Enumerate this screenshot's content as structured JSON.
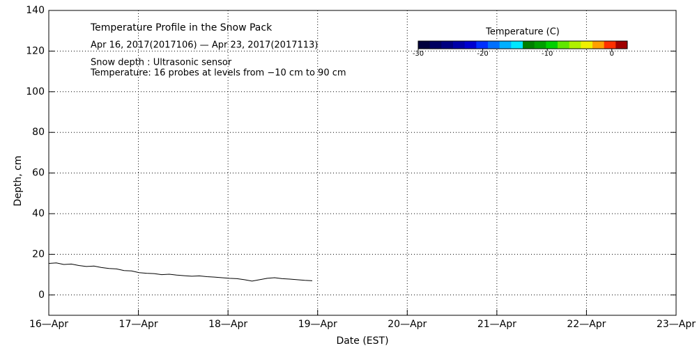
{
  "chart_data": {
    "type": "line",
    "title": "Temperature Profile in the Snow Pack",
    "subtitle": "Apr 16, 2017(2017106) — Apr 23, 2017(2017113)",
    "annotations": [
      "Snow depth : Ultrasonic sensor",
      "Temperature: 16 probes at levels from −10 cm to 90 cm"
    ],
    "x_label": "Date (EST)",
    "y_label": "Depth, cm",
    "xlim": [
      0,
      7
    ],
    "xticks": [
      {
        "value": 0,
        "label": "16—Apr"
      },
      {
        "value": 1,
        "label": "17—Apr"
      },
      {
        "value": 2,
        "label": "18—Apr"
      },
      {
        "value": 3,
        "label": "19—Apr"
      },
      {
        "value": 4,
        "label": "20—Apr"
      },
      {
        "value": 5,
        "label": "21—Apr"
      },
      {
        "value": 6,
        "label": "22—Apr"
      },
      {
        "value": 7,
        "label": "23—Apr"
      }
    ],
    "ylim": [
      -10,
      140
    ],
    "yticks": [
      0,
      20,
      40,
      60,
      80,
      100,
      120,
      140
    ],
    "grid": true,
    "series": [
      {
        "name": "Snow depth",
        "color": "#000000",
        "x": [
          0,
          0.084,
          0.168,
          0.252,
          0.336,
          0.42,
          0.504,
          0.588,
          0.672,
          0.756,
          0.84,
          0.924,
          1.008,
          1.092,
          1.176,
          1.26,
          1.344,
          1.428,
          1.512,
          1.596,
          1.68,
          1.764,
          1.848,
          1.932,
          2.016,
          2.1,
          2.184,
          2.268,
          2.352,
          2.436,
          2.52,
          2.604,
          2.688,
          2.772,
          2.856,
          2.94
        ],
        "values": [
          15.5,
          15.8,
          15,
          15.2,
          14.5,
          14,
          14.2,
          13.5,
          13,
          12.8,
          12,
          11.8,
          11,
          10.7,
          10.5,
          10,
          10.2,
          9.8,
          9.5,
          9.2,
          9.4,
          9,
          8.8,
          8.5,
          8.2,
          8,
          7.5,
          6.8,
          7.5,
          8.2,
          8.5,
          8,
          7.8,
          7.5,
          7.2,
          7
        ]
      }
    ],
    "colorbar": {
      "title": "Temperature (C)",
      "lim": [
        -30,
        2.4
      ],
      "ticks": [
        -30,
        -20,
        -10,
        0
      ],
      "colors": [
        "#00003c",
        "#000060",
        "#000080",
        "#0000a8",
        "#0000d0",
        "#0030ff",
        "#0070ff",
        "#00b0ff",
        "#00e8ff",
        "#008000",
        "#00a000",
        "#00d000",
        "#60e800",
        "#b0f000",
        "#f0f000",
        "#ffa000",
        "#ff3000",
        "#a00000"
      ]
    }
  }
}
